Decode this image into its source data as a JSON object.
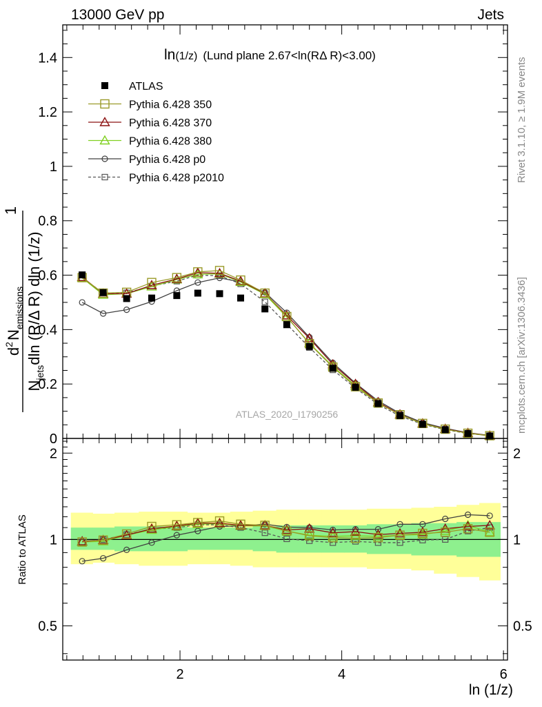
{
  "header": {
    "left": "13000 GeV pp",
    "right": "Jets"
  },
  "side_text": {
    "rivet": "Rivet 3.1.10, ≥ 1.9M events",
    "mcplots": "mcplots.cern.ch [arXiv:1306.3436]"
  },
  "watermark": "ATLAS_2020_I1790256",
  "colors": {
    "atlas": "#000000",
    "p350": "#9a9a28",
    "p370": "#8b1010",
    "p380": "#80d020",
    "p0": "#404040",
    "p2010": "#555555",
    "band_inner": "#8ef08e",
    "band_outer": "#ffff99"
  },
  "chart_data": [
    {
      "type": "scatter",
      "panel": "main",
      "title": "ln(1/z) (Lund plane 2.67<ln(RΔ R)<3.00)",
      "title_parts": {
        "a": "ln",
        "b": "(1/z)",
        "c": "(Lund plane 2.67<ln(RΔ R)<3.00)"
      },
      "ylabel_parts": {
        "one": "1",
        "den_N": "N",
        "den_sub": "jets",
        "den_rest": "dln (R/Δ R) dln (1/z)",
        "num_d": "d",
        "num_sup": "2",
        "num_N": "N",
        "num_sub": "emissions"
      },
      "xlim": [
        0.55,
        6.05
      ],
      "ylim": [
        0,
        1.52
      ],
      "yticks": [
        {
          "v": 0,
          "label": "0"
        },
        {
          "v": 0.2,
          "label": "0.2"
        },
        {
          "v": 0.4,
          "label": "0.4"
        },
        {
          "v": 0.6,
          "label": "0.6"
        },
        {
          "v": 0.8,
          "label": "0.8"
        },
        {
          "v": 1.0,
          "label": "1"
        },
        {
          "v": 1.2,
          "label": "1.2"
        },
        {
          "v": 1.4,
          "label": "1.4"
        }
      ],
      "legend_position": "top-left",
      "x": [
        0.79,
        1.05,
        1.34,
        1.65,
        1.96,
        2.22,
        2.49,
        2.75,
        3.05,
        3.32,
        3.6,
        3.89,
        4.17,
        4.45,
        4.72,
        5.0,
        5.28,
        5.56,
        5.83
      ],
      "series": [
        {
          "name": "ATLAS",
          "key": "atlas",
          "marker": "square-filled",
          "line": "none",
          "values": [
            0.601,
            0.536,
            0.514,
            0.516,
            0.525,
            0.534,
            0.532,
            0.516,
            0.476,
            0.418,
            0.338,
            0.258,
            0.188,
            0.128,
            0.084,
            0.052,
            0.032,
            0.018,
            0.009
          ]
        },
        {
          "name": "Pythia 6.428 350",
          "key": "p350",
          "marker": "square-open",
          "line": "solid",
          "values": [
            0.591,
            0.534,
            0.537,
            0.573,
            0.591,
            0.612,
            0.617,
            0.582,
            0.534,
            0.448,
            0.348,
            0.262,
            0.19,
            0.13,
            0.087,
            0.055,
            0.034,
            0.019,
            0.01
          ]
        },
        {
          "name": "Pythia 6.428 370",
          "key": "p370",
          "marker": "triangle-open",
          "line": "solid",
          "values": [
            0.593,
            0.532,
            0.532,
            0.563,
            0.586,
            0.609,
            0.607,
            0.578,
            0.533,
            0.452,
            0.368,
            0.272,
            0.2,
            0.133,
            0.088,
            0.055,
            0.035,
            0.02,
            0.01
          ]
        },
        {
          "name": "Pythia 6.428 380",
          "key": "p380",
          "marker": "triangle-open",
          "line": "solid",
          "values": [
            0.59,
            0.528,
            0.532,
            0.558,
            0.584,
            0.603,
            0.605,
            0.575,
            0.53,
            0.446,
            0.35,
            0.265,
            0.194,
            0.131,
            0.087,
            0.054,
            0.034,
            0.019,
            0.01
          ]
        },
        {
          "name": "Pythia 6.428 p0",
          "key": "p0",
          "marker": "circle-open",
          "line": "solid",
          "values": [
            0.5,
            0.459,
            0.473,
            0.503,
            0.543,
            0.573,
            0.59,
            0.575,
            0.537,
            0.462,
            0.372,
            0.278,
            0.203,
            0.138,
            0.092,
            0.058,
            0.037,
            0.021,
            0.011
          ]
        },
        {
          "name": "Pythia 6.428 p2010",
          "key": "p2010",
          "marker": "square-open-small",
          "line": "dashed",
          "values": [
            0.59,
            0.535,
            0.535,
            0.56,
            0.578,
            0.6,
            0.598,
            0.568,
            0.502,
            0.42,
            0.334,
            0.252,
            0.185,
            0.125,
            0.082,
            0.052,
            0.032,
            0.018,
            0.01
          ]
        }
      ]
    },
    {
      "type": "line",
      "panel": "ratio",
      "ylabel": "Ratio to ATLAS",
      "xlabel": "ln (1/z)",
      "xlim": [
        0.55,
        6.05
      ],
      "ylim": [
        0.38,
        2.25
      ],
      "xticks": [
        {
          "v": 2,
          "label": "2"
        },
        {
          "v": 4,
          "label": "4"
        },
        {
          "v": 6,
          "label": "6"
        }
      ],
      "yticks": [
        {
          "v": 0.5,
          "label": "0.5"
        },
        {
          "v": 1,
          "label": "1"
        },
        {
          "v": 2,
          "label": "2"
        }
      ],
      "x": [
        0.79,
        1.05,
        1.34,
        1.65,
        1.96,
        2.22,
        2.49,
        2.75,
        3.05,
        3.32,
        3.6,
        3.89,
        4.17,
        4.45,
        4.72,
        5.0,
        5.28,
        5.56,
        5.83
      ],
      "band_edges": [
        0.65,
        0.92,
        1.19,
        1.49,
        1.8,
        2.09,
        2.36,
        2.62,
        2.9,
        3.19,
        3.46,
        3.75,
        4.03,
        4.31,
        4.59,
        4.86,
        5.14,
        5.42,
        5.7,
        5.96
      ],
      "band_inner": {
        "lo": [
          0.92,
          0.92,
          0.91,
          0.91,
          0.91,
          0.92,
          0.92,
          0.92,
          0.91,
          0.9,
          0.9,
          0.9,
          0.9,
          0.89,
          0.89,
          0.88,
          0.88,
          0.87,
          0.87
        ],
        "hi": [
          1.1,
          1.1,
          1.11,
          1.11,
          1.11,
          1.1,
          1.1,
          1.1,
          1.11,
          1.12,
          1.12,
          1.12,
          1.12,
          1.13,
          1.13,
          1.14,
          1.14,
          1.15,
          1.15
        ]
      },
      "band_outer": {
        "lo": [
          0.82,
          0.83,
          0.82,
          0.81,
          0.81,
          0.82,
          0.82,
          0.81,
          0.8,
          0.8,
          0.8,
          0.8,
          0.8,
          0.79,
          0.79,
          0.78,
          0.76,
          0.74,
          0.72
        ],
        "hi": [
          1.24,
          1.23,
          1.24,
          1.25,
          1.25,
          1.24,
          1.24,
          1.25,
          1.26,
          1.27,
          1.27,
          1.27,
          1.27,
          1.28,
          1.28,
          1.29,
          1.3,
          1.32,
          1.34
        ]
      },
      "series": [
        {
          "name": "Pythia 6.428 350",
          "key": "p350",
          "marker": "square-open",
          "line": "solid",
          "values": [
            0.98,
            0.995,
            1.045,
            1.11,
            1.125,
            1.145,
            1.16,
            1.13,
            1.12,
            1.07,
            1.03,
            1.015,
            1.01,
            1.015,
            1.035,
            1.05,
            1.06,
            1.09,
            1.06
          ]
        },
        {
          "name": "Pythia 6.428 370",
          "key": "p370",
          "marker": "triangle-open",
          "line": "solid",
          "values": [
            0.985,
            0.995,
            1.035,
            1.09,
            1.115,
            1.14,
            1.14,
            1.12,
            1.12,
            1.08,
            1.09,
            1.055,
            1.065,
            1.04,
            1.05,
            1.06,
            1.09,
            1.11,
            1.12
          ]
        },
        {
          "name": "Pythia 6.428 380",
          "key": "p380",
          "marker": "triangle-open",
          "line": "solid",
          "values": [
            0.98,
            0.985,
            1.035,
            1.08,
            1.11,
            1.13,
            1.135,
            1.115,
            1.115,
            1.07,
            1.035,
            1.025,
            1.03,
            1.025,
            1.035,
            1.04,
            1.07,
            1.12,
            1.06
          ]
        },
        {
          "name": "Pythia 6.428 p0",
          "key": "p0",
          "marker": "circle-open",
          "line": "solid",
          "values": [
            0.84,
            0.86,
            0.92,
            0.975,
            1.035,
            1.07,
            1.11,
            1.115,
            1.13,
            1.105,
            1.1,
            1.08,
            1.085,
            1.085,
            1.13,
            1.13,
            1.18,
            1.22,
            1.21
          ]
        },
        {
          "name": "Pythia 6.428 p2010",
          "key": "p2010",
          "marker": "square-open-small",
          "line": "dashed",
          "values": [
            0.98,
            1.0,
            1.04,
            1.085,
            1.1,
            1.125,
            1.125,
            1.1,
            1.055,
            1.005,
            0.99,
            0.975,
            0.985,
            0.975,
            0.975,
            0.995,
            1.0,
            1.07,
            1.1
          ]
        }
      ]
    }
  ]
}
